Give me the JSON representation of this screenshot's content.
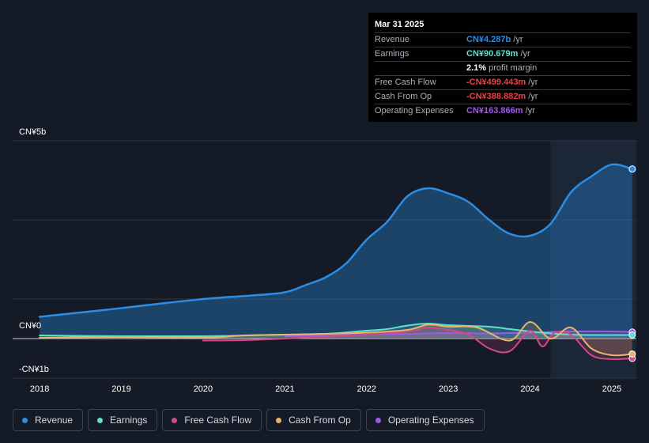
{
  "chart_data": {
    "type": "line",
    "y_axis": {
      "top_label": "CN¥5b",
      "zero_label": "CN¥0",
      "bottom_label": "-CN¥1b",
      "ylim": [
        -1.0,
        5.0
      ]
    },
    "x_ticks": [
      "2018",
      "2019",
      "2020",
      "2021",
      "2022",
      "2023",
      "2024",
      "2025"
    ],
    "x_tick_values": [
      2018,
      2019,
      2020,
      2021,
      2022,
      2023,
      2024,
      2025
    ],
    "xlim": [
      2017.67,
      2025.3
    ],
    "forecast_start": 2024.25,
    "series": [
      {
        "name": "Revenue",
        "color": "#2b8ee6",
        "fill": true,
        "points": [
          [
            2018.0,
            0.55
          ],
          [
            2018.5,
            0.66
          ],
          [
            2019.0,
            0.77
          ],
          [
            2019.5,
            0.89
          ],
          [
            2020.0,
            1.0
          ],
          [
            2020.3,
            1.05
          ],
          [
            2020.6,
            1.09
          ],
          [
            2021.0,
            1.17
          ],
          [
            2021.25,
            1.35
          ],
          [
            2021.5,
            1.55
          ],
          [
            2021.75,
            1.9
          ],
          [
            2022.0,
            2.5
          ],
          [
            2022.25,
            2.95
          ],
          [
            2022.5,
            3.6
          ],
          [
            2022.75,
            3.8
          ],
          [
            2023.0,
            3.67
          ],
          [
            2023.25,
            3.45
          ],
          [
            2023.5,
            3.0
          ],
          [
            2023.75,
            2.65
          ],
          [
            2024.0,
            2.6
          ],
          [
            2024.25,
            2.9
          ],
          [
            2024.5,
            3.7
          ],
          [
            2024.75,
            4.1
          ],
          [
            2025.0,
            4.4
          ],
          [
            2025.25,
            4.287
          ]
        ]
      },
      {
        "name": "Earnings",
        "color": "#5fe1cc",
        "points": [
          [
            2018.0,
            0.08
          ],
          [
            2019.0,
            0.06
          ],
          [
            2020.0,
            0.06
          ],
          [
            2021.0,
            0.1
          ],
          [
            2021.5,
            0.12
          ],
          [
            2022.0,
            0.2
          ],
          [
            2022.25,
            0.24
          ],
          [
            2022.5,
            0.33
          ],
          [
            2022.75,
            0.38
          ],
          [
            2023.0,
            0.34
          ],
          [
            2023.5,
            0.3
          ],
          [
            2023.75,
            0.24
          ],
          [
            2024.0,
            0.18
          ],
          [
            2024.25,
            0.13
          ],
          [
            2024.5,
            0.1
          ],
          [
            2024.75,
            0.09
          ],
          [
            2025.0,
            0.09
          ],
          [
            2025.25,
            0.09
          ]
        ]
      },
      {
        "name": "Free Cash Flow",
        "color": "#d44985",
        "points": [
          [
            2020.0,
            -0.05
          ],
          [
            2020.5,
            -0.04
          ],
          [
            2021.0,
            0.0
          ],
          [
            2021.5,
            0.05
          ],
          [
            2022.0,
            0.1
          ],
          [
            2022.5,
            0.18
          ],
          [
            2022.75,
            0.28
          ],
          [
            2023.0,
            0.22
          ],
          [
            2023.25,
            0.1
          ],
          [
            2023.5,
            -0.25
          ],
          [
            2023.75,
            -0.32
          ],
          [
            2024.0,
            0.2
          ],
          [
            2024.15,
            -0.2
          ],
          [
            2024.3,
            0.15
          ],
          [
            2024.5,
            0.1
          ],
          [
            2024.75,
            -0.42
          ],
          [
            2025.0,
            -0.52
          ],
          [
            2025.25,
            -0.499
          ]
        ]
      },
      {
        "name": "Cash From Op",
        "color": "#e8b56a",
        "points": [
          [
            2018.0,
            0.02
          ],
          [
            2019.0,
            0.04
          ],
          [
            2020.0,
            0.02
          ],
          [
            2020.5,
            0.08
          ],
          [
            2021.0,
            0.1
          ],
          [
            2021.5,
            0.12
          ],
          [
            2022.0,
            0.15
          ],
          [
            2022.5,
            0.22
          ],
          [
            2022.75,
            0.35
          ],
          [
            2023.0,
            0.3
          ],
          [
            2023.35,
            0.28
          ],
          [
            2023.75,
            -0.05
          ],
          [
            2024.0,
            0.42
          ],
          [
            2024.25,
            0.0
          ],
          [
            2024.5,
            0.28
          ],
          [
            2024.75,
            -0.25
          ],
          [
            2025.0,
            -0.42
          ],
          [
            2025.25,
            -0.389
          ]
        ]
      },
      {
        "name": "Operating Expenses",
        "color": "#9f5ae8",
        "points": [
          [
            2021.0,
            0.06
          ],
          [
            2021.5,
            0.08
          ],
          [
            2022.0,
            0.1
          ],
          [
            2022.5,
            0.12
          ],
          [
            2023.0,
            0.14
          ],
          [
            2023.5,
            0.13
          ],
          [
            2024.0,
            0.15
          ],
          [
            2024.5,
            0.18
          ],
          [
            2025.0,
            0.18
          ],
          [
            2025.25,
            0.164
          ]
        ]
      }
    ],
    "legend": [
      "Revenue",
      "Earnings",
      "Free Cash Flow",
      "Cash From Op",
      "Operating Expenses"
    ]
  },
  "tooltip": {
    "date": "Mar 31 2025",
    "rows": [
      {
        "label": "Revenue",
        "value": "CN¥4.287b",
        "unit": "/yr",
        "color": "#2b8ee6"
      },
      {
        "label": "Earnings",
        "value": "CN¥90.679m",
        "unit": "/yr",
        "color": "#5fe1cc"
      },
      {
        "label": "",
        "value": "2.1%",
        "unit": "profit margin",
        "color": "#ffffff"
      },
      {
        "label": "Free Cash Flow",
        "value": "-CN¥499.443m",
        "unit": "/yr",
        "color": "#e64343"
      },
      {
        "label": "Cash From Op",
        "value": "-CN¥388.882m",
        "unit": "/yr",
        "color": "#e64343"
      },
      {
        "label": "Operating Expenses",
        "value": "CN¥163.866m",
        "unit": "/yr",
        "color": "#9f5ae8"
      }
    ]
  },
  "legend_items": [
    {
      "label": "Revenue",
      "color": "#2b8ee6"
    },
    {
      "label": "Earnings",
      "color": "#5fe1cc"
    },
    {
      "label": "Free Cash Flow",
      "color": "#d44985"
    },
    {
      "label": "Cash From Op",
      "color": "#e8b56a"
    },
    {
      "label": "Operating Expenses",
      "color": "#9f5ae8"
    }
  ]
}
